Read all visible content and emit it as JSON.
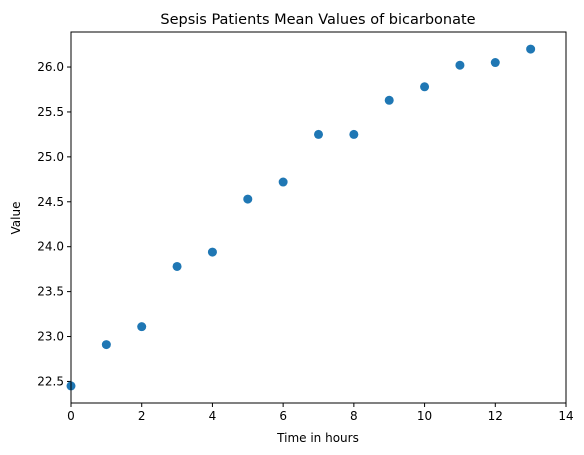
{
  "chart_data": {
    "type": "scatter",
    "title": "Sepsis Patients Mean Values of bicarbonate",
    "xlabel": "Time in hours",
    "ylabel": "Value",
    "xlim": [
      0,
      14
    ],
    "ylim": [
      22.26,
      26.39
    ],
    "xticks": [
      0,
      2,
      4,
      6,
      8,
      10,
      12,
      14
    ],
    "yticks": [
      22.5,
      23.0,
      23.5,
      24.0,
      24.5,
      25.0,
      25.5,
      26.0
    ],
    "xtick_labels": [
      "0",
      "2",
      "4",
      "6",
      "8",
      "10",
      "12",
      "14"
    ],
    "ytick_labels": [
      "22.5",
      "23.0",
      "23.5",
      "24.0",
      "24.5",
      "25.0",
      "25.5",
      "26.0"
    ],
    "grid": false,
    "legend": "none",
    "marker_color": "#1f77b4",
    "points": [
      {
        "x": 0,
        "y": 22.45
      },
      {
        "x": 1,
        "y": 22.91
      },
      {
        "x": 2,
        "y": 23.11
      },
      {
        "x": 3,
        "y": 23.78
      },
      {
        "x": 4,
        "y": 23.94
      },
      {
        "x": 5,
        "y": 24.53
      },
      {
        "x": 6,
        "y": 24.72
      },
      {
        "x": 7,
        "y": 25.25
      },
      {
        "x": 8,
        "y": 25.25
      },
      {
        "x": 9,
        "y": 25.63
      },
      {
        "x": 10,
        "y": 25.78
      },
      {
        "x": 11,
        "y": 26.02
      },
      {
        "x": 12,
        "y": 26.05
      },
      {
        "x": 13,
        "y": 26.2
      }
    ]
  }
}
